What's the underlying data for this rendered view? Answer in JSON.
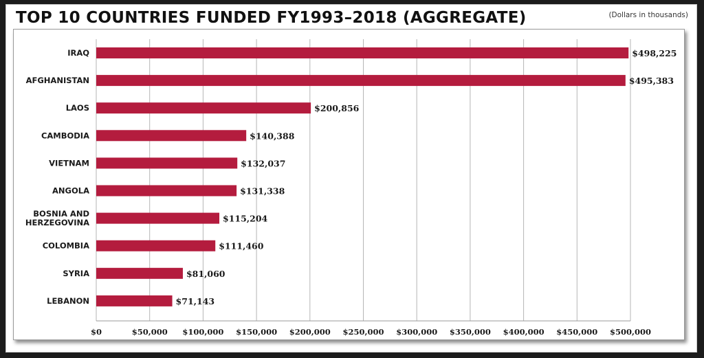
{
  "header": {
    "title": "TOP 10 COUNTRIES FUNDED FY1993–2018 (AGGREGATE)",
    "units_note": "(Dollars in thousands)"
  },
  "chart_data": {
    "type": "bar",
    "orientation": "horizontal",
    "title": "TOP 10 COUNTRIES FUNDED FY1993–2018 (AGGREGATE)",
    "units": "(Dollars in thousands)",
    "categories": [
      [
        "IRAQ"
      ],
      [
        "AFGHANISTAN"
      ],
      [
        "LAOS"
      ],
      [
        "CAMBODIA"
      ],
      [
        "VIETNAM"
      ],
      [
        "ANGOLA"
      ],
      [
        "BOSNIA AND",
        "HERZEGOVINA"
      ],
      [
        "COLOMBIA"
      ],
      [
        "SYRIA"
      ],
      [
        "LEBANON"
      ]
    ],
    "values": [
      498225,
      495383,
      200856,
      140388,
      132037,
      131338,
      115204,
      111460,
      81060,
      71143
    ],
    "value_labels": [
      "$498,225",
      "$495,383",
      "$200,856",
      "$140,388",
      "$132,037",
      "$131,338",
      "$115,204",
      "$111,460",
      "$81,060",
      "$71,143"
    ],
    "xlim": [
      0,
      500000
    ],
    "xticks": [
      0,
      50000,
      100000,
      150000,
      200000,
      250000,
      300000,
      350000,
      400000,
      450000,
      500000
    ],
    "xtick_labels": [
      "$0",
      "$50,000",
      "$100,000",
      "$150,000",
      "$200,000",
      "$250,000",
      "$300,000",
      "$350,000",
      "$400,000",
      "$450,000",
      "$500,000"
    ],
    "grid": true,
    "bar_color": "#b41c3e",
    "grid_color": "#b5b5b5"
  }
}
